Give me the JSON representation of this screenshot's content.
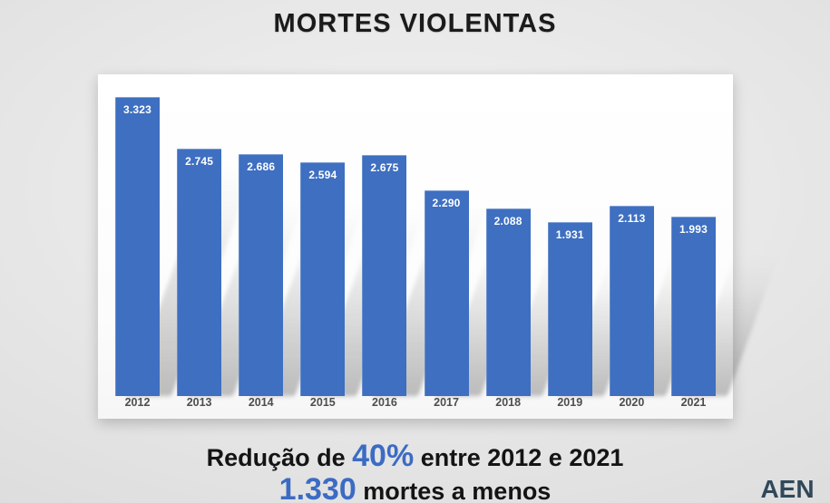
{
  "page": {
    "title": "MORTES VIOLENTAS"
  },
  "chart_data": {
    "type": "bar",
    "title": "MORTES VIOLENTAS",
    "categories": [
      "2012",
      "2013",
      "2014",
      "2015",
      "2016",
      "2017",
      "2018",
      "2019",
      "2020",
      "2021"
    ],
    "values": [
      3323,
      2745,
      2686,
      2594,
      2675,
      2290,
      2088,
      1931,
      2113,
      1993
    ],
    "value_labels": [
      "3.323",
      "2.745",
      "2.686",
      "2.594",
      "2.675",
      "2.290",
      "2.088",
      "1.931",
      "2.113",
      "1.993"
    ],
    "xlabel": "",
    "ylabel": "",
    "ylim": [
      0,
      3400
    ],
    "grid": false,
    "legend": false,
    "bar_color": "#3e6fc1",
    "bar_label_color": "#ffffff",
    "axis_label_color": "#4d4d4d"
  },
  "footer": {
    "line1_prefix": "Redução de ",
    "line1_highlight": "40%",
    "line1_suffix": " entre 2012 e 2021",
    "line2_highlight": "1.330",
    "line2_suffix": " mortes a menos",
    "highlight_color": "#3c6bc4",
    "text_color": "#141414"
  },
  "logo": {
    "text": "AEN",
    "text_color": "#30485a",
    "underline_blue": "#1b75bb",
    "underline_green": "#38a04a"
  }
}
